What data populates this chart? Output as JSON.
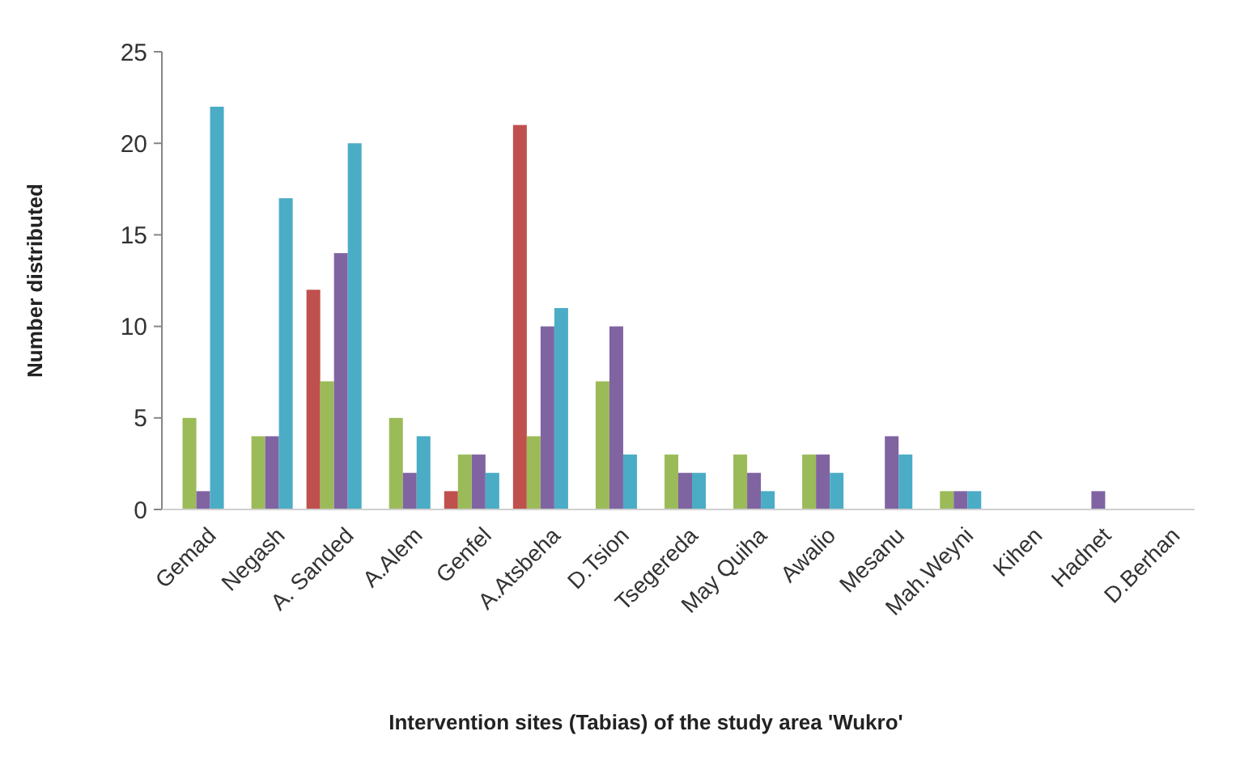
{
  "chart_data": {
    "type": "bar",
    "xlabel": "Intervention sites (Tabias) of the study area 'Wukro'",
    "ylabel": "Number distributed",
    "categories": [
      "Gemad",
      "Negash",
      "A. Sanded",
      "A.Alem",
      "Genfel",
      "A.Atsbeha",
      "D.Tsion",
      "Tsegereda",
      "May Quiha",
      "Awalio",
      "Mesanu",
      "Mah.Weyni",
      "Kihen",
      "Hadnet",
      "D.Berhan"
    ],
    "series": [
      {
        "color": "#c0504d",
        "values": [
          0,
          0,
          12,
          0,
          1,
          21,
          0,
          0,
          0,
          0,
          0,
          0,
          0,
          0,
          0
        ]
      },
      {
        "color": "#9bbb59",
        "values": [
          5,
          4,
          7,
          5,
          3,
          4,
          7,
          3,
          3,
          3,
          0,
          1,
          0,
          0,
          0
        ]
      },
      {
        "color": "#8064a2",
        "values": [
          1,
          4,
          14,
          2,
          3,
          10,
          10,
          2,
          2,
          3,
          4,
          1,
          0,
          1,
          0
        ]
      },
      {
        "color": "#4bacc6",
        "values": [
          22,
          17,
          20,
          4,
          2,
          11,
          3,
          2,
          1,
          2,
          3,
          1,
          0,
          0,
          0
        ]
      }
    ],
    "ylim": [
      0,
      25
    ],
    "yticks": [
      0,
      5,
      10,
      15,
      20,
      25
    ],
    "grid": false
  }
}
